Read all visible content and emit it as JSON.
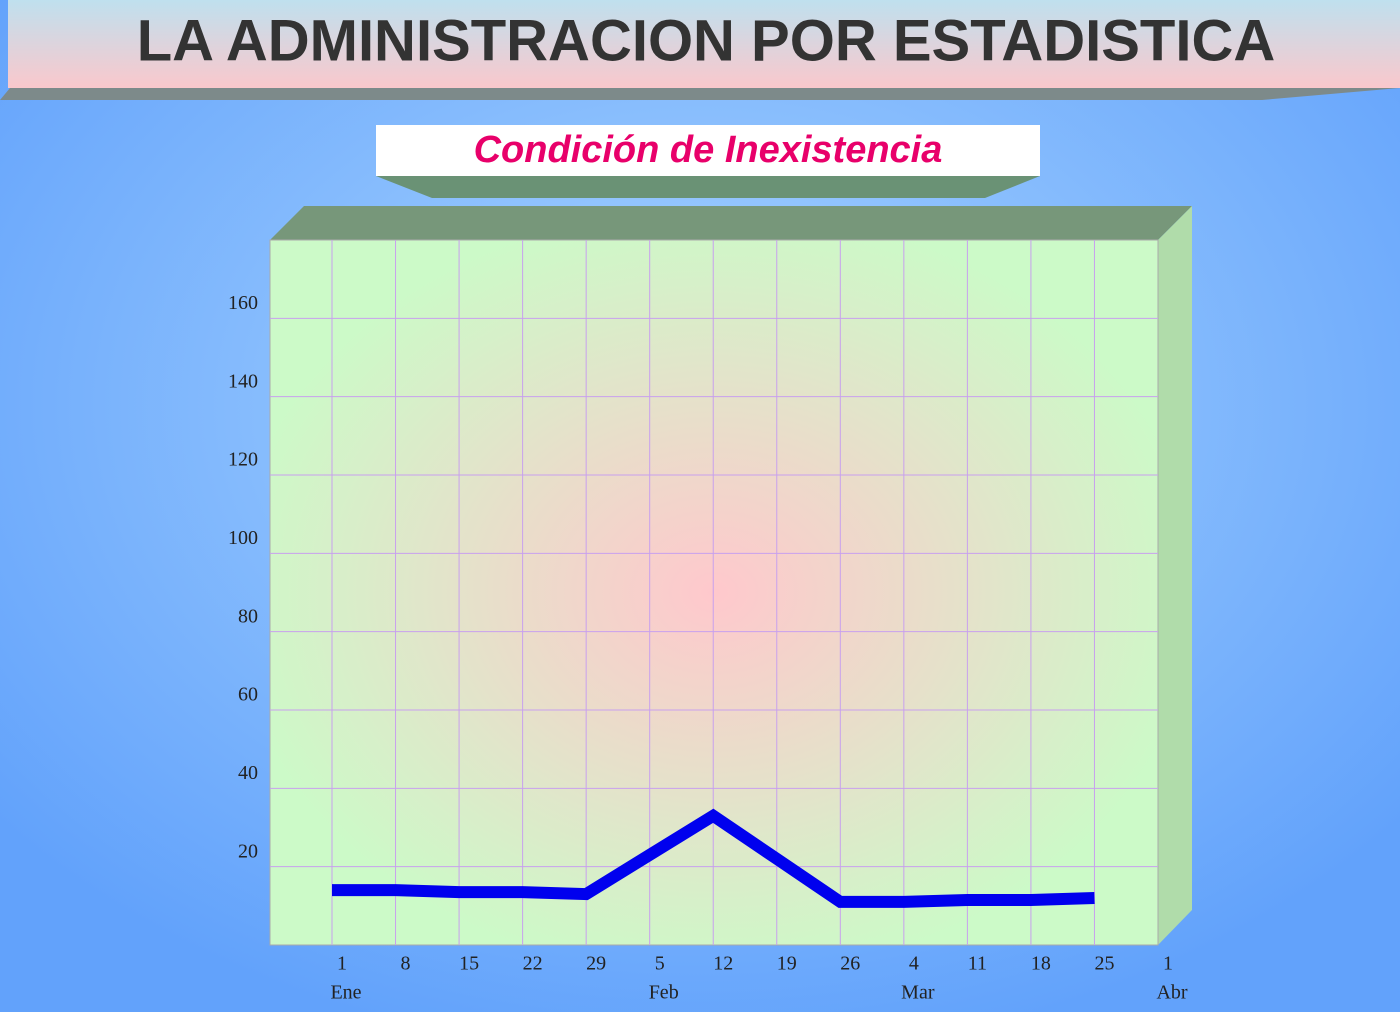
{
  "chart_data": {
    "type": "line",
    "title": "LA ADMINISTRACION POR ESTADISTICA",
    "subtitle": "Condición de Inexistencia",
    "categories": [
      "1",
      "8",
      "15",
      "22",
      "29",
      "5",
      "12",
      "19",
      "26",
      "4",
      "11",
      "18",
      "25",
      "1"
    ],
    "months": [
      "Ene",
      null,
      null,
      null,
      null,
      "Feb",
      null,
      null,
      null,
      "Mar",
      null,
      null,
      null,
      "Abr"
    ],
    "series": [
      {
        "name": null,
        "color": "#0000ee",
        "values": [
          14,
          14,
          13.5,
          13.5,
          13,
          23,
          33,
          22,
          11,
          11,
          11.5,
          11.5,
          12,
          null
        ]
      }
    ],
    "ylim": [
      0,
      180
    ],
    "yticks": [
      20,
      40,
      60,
      80,
      100,
      120,
      140,
      160
    ],
    "grid": true
  }
}
